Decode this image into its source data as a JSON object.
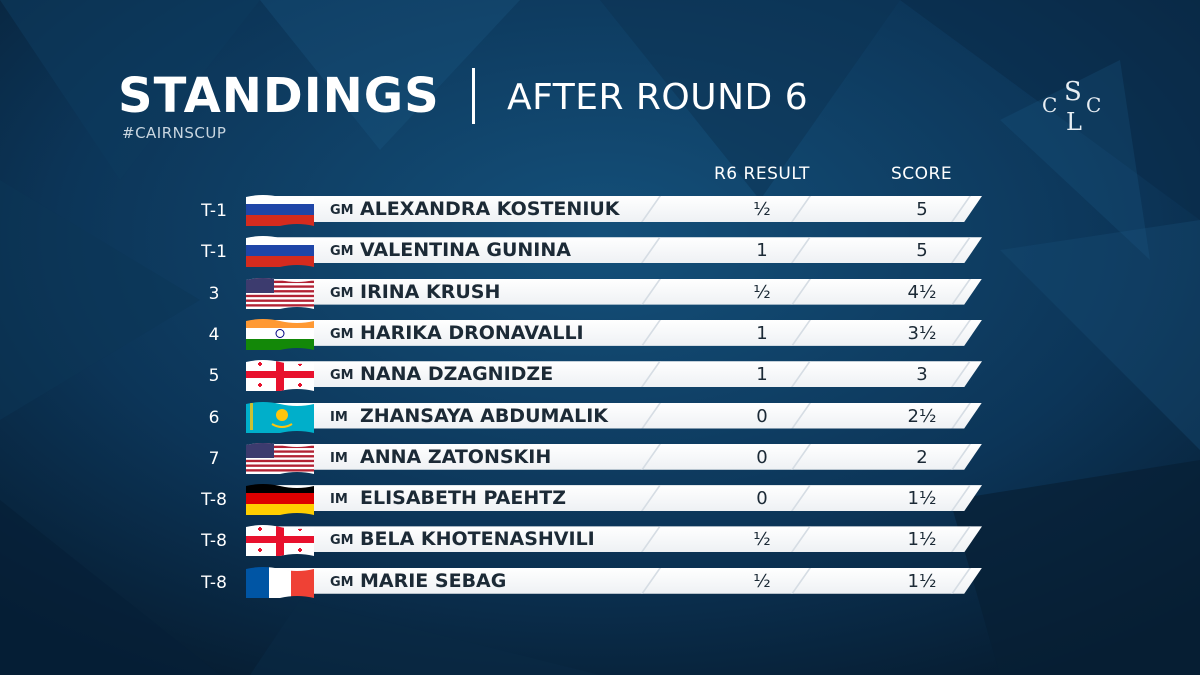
{
  "header": {
    "title": "STANDINGS",
    "subtitle": "AFTER ROUND 6",
    "hashtag": "#CAIRNSCUP",
    "logo_letters": [
      "C",
      "S",
      "L",
      "C"
    ]
  },
  "columns": {
    "result": "R6 RESULT",
    "score": "SCORE"
  },
  "colors": {
    "background": "#0a2a45",
    "bar": "#ffffff",
    "text_dark": "#1c2a36"
  },
  "players": [
    {
      "rank": "T-1",
      "flag": "russia-flag-icon",
      "title": "GM",
      "name": "ALEXANDRA KOSTENIUK",
      "result": "½",
      "score": "5"
    },
    {
      "rank": "T-1",
      "flag": "russia-flag-icon",
      "title": "GM",
      "name": "VALENTINA GUNINA",
      "result": "1",
      "score": "5"
    },
    {
      "rank": "3",
      "flag": "usa-flag-icon",
      "title": "GM",
      "name": "IRINA KRUSH",
      "result": "½",
      "score": "4½"
    },
    {
      "rank": "4",
      "flag": "india-flag-icon",
      "title": "GM",
      "name": "HARIKA DRONAVALLI",
      "result": "1",
      "score": "3½"
    },
    {
      "rank": "5",
      "flag": "georgia-flag-icon",
      "title": "GM",
      "name": "NANA DZAGNIDZE",
      "result": "1",
      "score": "3"
    },
    {
      "rank": "6",
      "flag": "kazakhstan-flag-icon",
      "title": "IM",
      "name": "ZHANSAYA ABDUMALIK",
      "result": "0",
      "score": "2½"
    },
    {
      "rank": "7",
      "flag": "usa-flag-icon",
      "title": "IM",
      "name": "ANNA ZATONSKIH",
      "result": "0",
      "score": "2"
    },
    {
      "rank": "T-8",
      "flag": "germany-flag-icon",
      "title": "IM",
      "name": "ELISABETH PAEHTZ",
      "result": "0",
      "score": "1½"
    },
    {
      "rank": "T-8",
      "flag": "georgia-flag-icon",
      "title": "GM",
      "name": "BELA KHOTENASHVILI",
      "result": "½",
      "score": "1½"
    },
    {
      "rank": "T-8",
      "flag": "france-flag-icon",
      "title": "GM",
      "name": "MARIE SEBAG",
      "result": "½",
      "score": "1½"
    }
  ]
}
